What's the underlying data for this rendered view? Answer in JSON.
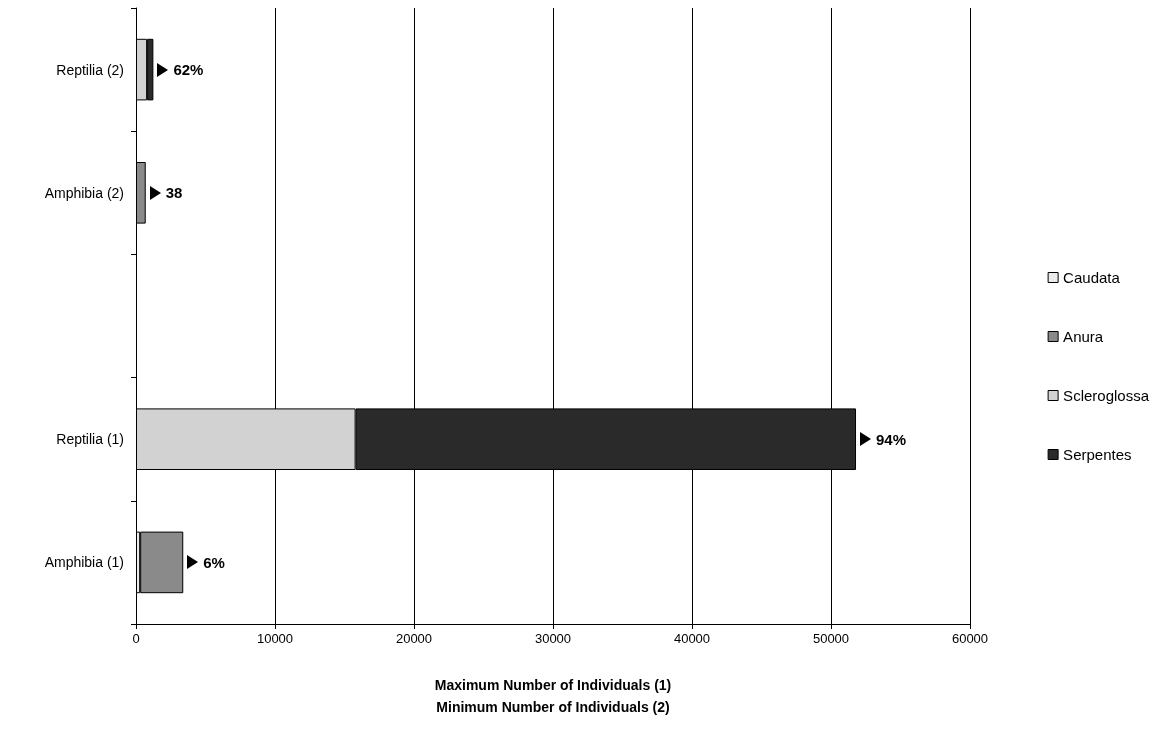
{
  "chart_data": {
    "type": "bar",
    "orientation": "horizontal",
    "stacked": true,
    "xlabel": "Maximum Number of Individuals (1)\nMinimum Number of Individuals (2)",
    "categories": [
      "Reptilia (2)",
      "Amphibia (2)",
      null,
      "Reptilia (1)",
      "Amphibia (1)"
    ],
    "series": [
      {
        "name": "Caudata",
        "color": "#ececec",
        "values": [
          null,
          null,
          null,
          null,
          300
        ]
      },
      {
        "name": "Anura",
        "color": "#8a8a8a",
        "values": [
          null,
          700,
          null,
          null,
          3100
        ]
      },
      {
        "name": "Scleroglossa",
        "color": "#d2d2d2",
        "values": [
          800,
          null,
          null,
          15800,
          null
        ]
      },
      {
        "name": "Serpentes",
        "color": "#2a2a2a",
        "values": [
          450,
          null,
          null,
          36000,
          null
        ]
      }
    ],
    "xlim": [
      0,
      60000
    ],
    "xticks": [
      0,
      10000,
      20000,
      30000,
      40000,
      50000,
      60000
    ],
    "grid": "x",
    "legend": "right",
    "annotations": [
      {
        "text": "62%",
        "x": 1250,
        "y": "Reptilia (2)"
      },
      {
        "text": "38",
        "x": 700,
        "y": "Amphibia (2)"
      },
      {
        "text": "94%",
        "x": 51800,
        "y": "Reptilia (1)"
      },
      {
        "text": "6%",
        "x": 3400,
        "y": "Amphibia (1)"
      }
    ]
  }
}
